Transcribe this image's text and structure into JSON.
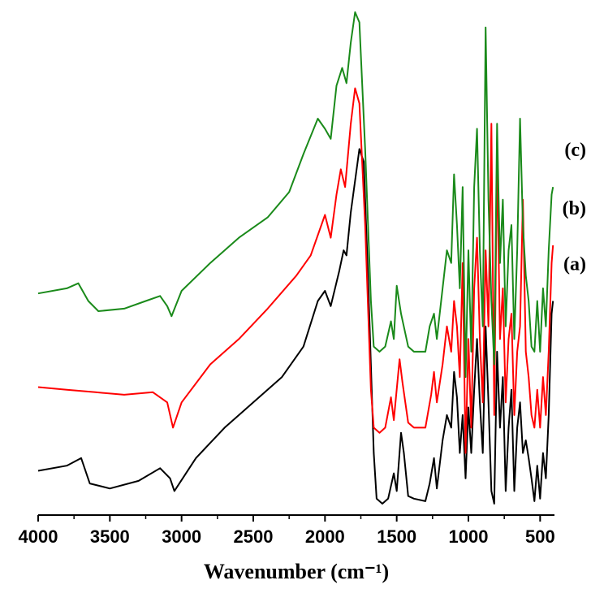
{
  "chart_data": {
    "type": "line",
    "title": "",
    "xlabel": "Wavenumber (cm⁻¹)",
    "ylabel": "",
    "x_reversed": true,
    "xlim": [
      4000,
      400
    ],
    "x_ticks": [
      4000,
      3500,
      3000,
      2500,
      2000,
      1500,
      1000,
      500
    ],
    "y_axis_shown": false,
    "grid": false,
    "legend": "none; series labelled at right end",
    "series": [
      {
        "label": "(a)",
        "color": "#000000",
        "points": [
          [
            4000,
            0.13
          ],
          [
            3800,
            0.15
          ],
          [
            3700,
            0.18
          ],
          [
            3640,
            0.08
          ],
          [
            3500,
            0.06
          ],
          [
            3300,
            0.09
          ],
          [
            3150,
            0.14
          ],
          [
            3080,
            0.1
          ],
          [
            3050,
            0.05
          ],
          [
            2900,
            0.18
          ],
          [
            2700,
            0.3
          ],
          [
            2500,
            0.4
          ],
          [
            2300,
            0.5
          ],
          [
            2150,
            0.62
          ],
          [
            2050,
            0.8
          ],
          [
            2000,
            0.84
          ],
          [
            1960,
            0.78
          ],
          [
            1900,
            0.92
          ],
          [
            1870,
            1.0
          ],
          [
            1850,
            0.98
          ],
          [
            1820,
            1.15
          ],
          [
            1760,
            1.4
          ],
          [
            1730,
            1.35
          ],
          [
            1700,
            0.9
          ],
          [
            1660,
            0.2
          ],
          [
            1640,
            0.02
          ],
          [
            1600,
            0.0
          ],
          [
            1560,
            0.02
          ],
          [
            1520,
            0.12
          ],
          [
            1500,
            0.05
          ],
          [
            1470,
            0.28
          ],
          [
            1450,
            0.2
          ],
          [
            1420,
            0.03
          ],
          [
            1380,
            0.02
          ],
          [
            1300,
            0.01
          ],
          [
            1270,
            0.08
          ],
          [
            1240,
            0.18
          ],
          [
            1220,
            0.06
          ],
          [
            1180,
            0.25
          ],
          [
            1150,
            0.35
          ],
          [
            1120,
            0.3
          ],
          [
            1100,
            0.52
          ],
          [
            1080,
            0.42
          ],
          [
            1060,
            0.2
          ],
          [
            1040,
            0.35
          ],
          [
            1020,
            0.1
          ],
          [
            1000,
            0.38
          ],
          [
            980,
            0.2
          ],
          [
            960,
            0.45
          ],
          [
            940,
            0.65
          ],
          [
            920,
            0.4
          ],
          [
            900,
            0.2
          ],
          [
            880,
            0.7
          ],
          [
            860,
            0.4
          ],
          [
            840,
            0.05
          ],
          [
            820,
            0.0
          ],
          [
            800,
            0.6
          ],
          [
            780,
            0.3
          ],
          [
            760,
            0.5
          ],
          [
            740,
            0.05
          ],
          [
            720,
            0.3
          ],
          [
            700,
            0.45
          ],
          [
            680,
            0.05
          ],
          [
            660,
            0.3
          ],
          [
            640,
            0.4
          ],
          [
            620,
            0.2
          ],
          [
            600,
            0.25
          ],
          [
            580,
            0.18
          ],
          [
            560,
            0.1
          ],
          [
            540,
            0.01
          ],
          [
            520,
            0.15
          ],
          [
            500,
            0.02
          ],
          [
            480,
            0.2
          ],
          [
            460,
            0.1
          ],
          [
            440,
            0.35
          ],
          [
            420,
            0.75
          ],
          [
            410,
            0.8
          ]
        ]
      },
      {
        "label": "(b)",
        "color": "#ff0000",
        "points": [
          [
            4000,
            0.46
          ],
          [
            3800,
            0.45
          ],
          [
            3600,
            0.44
          ],
          [
            3400,
            0.43
          ],
          [
            3200,
            0.44
          ],
          [
            3100,
            0.4
          ],
          [
            3060,
            0.3
          ],
          [
            3000,
            0.4
          ],
          [
            2800,
            0.55
          ],
          [
            2600,
            0.65
          ],
          [
            2400,
            0.77
          ],
          [
            2200,
            0.9
          ],
          [
            2100,
            0.98
          ],
          [
            2000,
            1.14
          ],
          [
            1960,
            1.05
          ],
          [
            1920,
            1.22
          ],
          [
            1890,
            1.32
          ],
          [
            1860,
            1.25
          ],
          [
            1820,
            1.5
          ],
          [
            1790,
            1.64
          ],
          [
            1760,
            1.58
          ],
          [
            1720,
            1.1
          ],
          [
            1680,
            0.45
          ],
          [
            1660,
            0.3
          ],
          [
            1620,
            0.28
          ],
          [
            1580,
            0.3
          ],
          [
            1540,
            0.42
          ],
          [
            1520,
            0.33
          ],
          [
            1480,
            0.57
          ],
          [
            1460,
            0.48
          ],
          [
            1420,
            0.32
          ],
          [
            1380,
            0.3
          ],
          [
            1300,
            0.3
          ],
          [
            1260,
            0.43
          ],
          [
            1240,
            0.52
          ],
          [
            1220,
            0.4
          ],
          [
            1180,
            0.55
          ],
          [
            1150,
            0.7
          ],
          [
            1120,
            0.6
          ],
          [
            1100,
            0.8
          ],
          [
            1080,
            0.7
          ],
          [
            1060,
            0.5
          ],
          [
            1040,
            0.95
          ],
          [
            1020,
            0.2
          ],
          [
            1000,
            0.65
          ],
          [
            980,
            0.3
          ],
          [
            960,
            0.85
          ],
          [
            940,
            1.05
          ],
          [
            920,
            0.65
          ],
          [
            900,
            0.4
          ],
          [
            880,
            1.0
          ],
          [
            860,
            0.7
          ],
          [
            840,
            1.5
          ],
          [
            820,
            0.35
          ],
          [
            800,
            1.38
          ],
          [
            780,
            0.65
          ],
          [
            760,
            0.85
          ],
          [
            740,
            0.4
          ],
          [
            720,
            0.65
          ],
          [
            700,
            0.75
          ],
          [
            680,
            0.35
          ],
          [
            660,
            0.6
          ],
          [
            640,
            0.7
          ],
          [
            620,
            1.2
          ],
          [
            600,
            0.6
          ],
          [
            580,
            0.5
          ],
          [
            560,
            0.35
          ],
          [
            540,
            0.3
          ],
          [
            520,
            0.45
          ],
          [
            500,
            0.3
          ],
          [
            480,
            0.5
          ],
          [
            460,
            0.35
          ],
          [
            440,
            0.6
          ],
          [
            420,
            0.95
          ],
          [
            410,
            1.02
          ]
        ]
      },
      {
        "label": "(c)",
        "color": "#1a8a1a",
        "points": [
          [
            4000,
            0.83
          ],
          [
            3800,
            0.85
          ],
          [
            3720,
            0.87
          ],
          [
            3650,
            0.8
          ],
          [
            3580,
            0.76
          ],
          [
            3400,
            0.77
          ],
          [
            3250,
            0.8
          ],
          [
            3150,
            0.82
          ],
          [
            3100,
            0.78
          ],
          [
            3070,
            0.74
          ],
          [
            3000,
            0.84
          ],
          [
            2800,
            0.95
          ],
          [
            2600,
            1.05
          ],
          [
            2400,
            1.13
          ],
          [
            2250,
            1.23
          ],
          [
            2150,
            1.38
          ],
          [
            2050,
            1.52
          ],
          [
            2000,
            1.48
          ],
          [
            1960,
            1.44
          ],
          [
            1920,
            1.65
          ],
          [
            1880,
            1.72
          ],
          [
            1850,
            1.66
          ],
          [
            1820,
            1.82
          ],
          [
            1790,
            1.94
          ],
          [
            1760,
            1.9
          ],
          [
            1720,
            1.4
          ],
          [
            1680,
            0.8
          ],
          [
            1660,
            0.62
          ],
          [
            1620,
            0.6
          ],
          [
            1580,
            0.62
          ],
          [
            1540,
            0.72
          ],
          [
            1520,
            0.65
          ],
          [
            1500,
            0.86
          ],
          [
            1470,
            0.75
          ],
          [
            1420,
            0.62
          ],
          [
            1380,
            0.6
          ],
          [
            1300,
            0.6
          ],
          [
            1270,
            0.7
          ],
          [
            1240,
            0.75
          ],
          [
            1220,
            0.65
          ],
          [
            1180,
            0.85
          ],
          [
            1150,
            1.0
          ],
          [
            1120,
            0.95
          ],
          [
            1100,
            1.3
          ],
          [
            1080,
            1.1
          ],
          [
            1060,
            0.85
          ],
          [
            1040,
            1.25
          ],
          [
            1020,
            0.5
          ],
          [
            1000,
            1.0
          ],
          [
            980,
            0.6
          ],
          [
            960,
            1.25
          ],
          [
            940,
            1.48
          ],
          [
            920,
            1.0
          ],
          [
            900,
            0.7
          ],
          [
            880,
            1.88
          ],
          [
            860,
            1.2
          ],
          [
            840,
            0.8
          ],
          [
            820,
            0.55
          ],
          [
            800,
            1.5
          ],
          [
            780,
            0.95
          ],
          [
            760,
            1.2
          ],
          [
            740,
            0.7
          ],
          [
            720,
            1.0
          ],
          [
            700,
            1.1
          ],
          [
            680,
            0.65
          ],
          [
            660,
            1.0
          ],
          [
            640,
            1.52
          ],
          [
            620,
            1.1
          ],
          [
            600,
            0.9
          ],
          [
            580,
            0.8
          ],
          [
            560,
            0.62
          ],
          [
            540,
            0.6
          ],
          [
            520,
            0.8
          ],
          [
            500,
            0.6
          ],
          [
            480,
            0.85
          ],
          [
            460,
            0.7
          ],
          [
            440,
            1.0
          ],
          [
            420,
            1.22
          ],
          [
            410,
            1.25
          ]
        ]
      }
    ]
  }
}
